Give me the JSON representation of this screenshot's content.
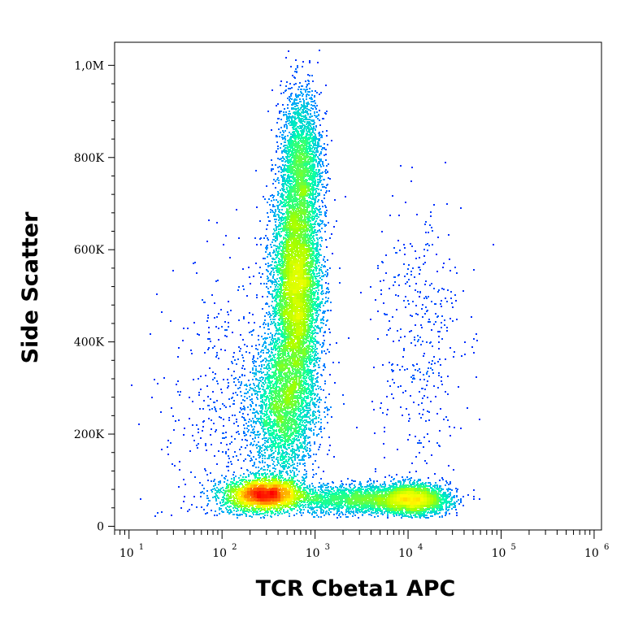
{
  "chart_data": {
    "type": "scatter",
    "subtype": "flow-cytometry-density-dot-plot",
    "title": "",
    "xlabel": "TCR Cbeta1 APC",
    "ylabel": "Side Scatter",
    "x_scale": "log",
    "y_scale": "linear",
    "xlim": [
      7,
      1200000
    ],
    "ylim": [
      -8000,
      1050000
    ],
    "grid": false,
    "legend": "none",
    "x_ticks": [
      {
        "base": "10",
        "exp": "1",
        "value": 10
      },
      {
        "base": "10",
        "exp": "2",
        "value": 100
      },
      {
        "base": "10",
        "exp": "3",
        "value": 1000
      },
      {
        "base": "10",
        "exp": "4",
        "value": 10000
      },
      {
        "base": "10",
        "exp": "5",
        "value": 100000
      },
      {
        "base": "10",
        "exp": "6",
        "value": 1000000
      }
    ],
    "y_ticks": [
      {
        "label": "0",
        "value": 0
      },
      {
        "label": "200K",
        "value": 200000
      },
      {
        "label": "400K",
        "value": 400000
      },
      {
        "label": "600K",
        "value": 600000
      },
      {
        "label": "800K",
        "value": 800000
      },
      {
        "label": "1,0M",
        "value": 1000000
      }
    ],
    "density_colormap": [
      "#0000ff",
      "#00a0ff",
      "#00ffb0",
      "#a0ff00",
      "#ffff00",
      "#ff8000",
      "#ff0000"
    ],
    "populations": [
      {
        "x_center": 620,
        "x_log_sd": 0.13,
        "y_center": 520000,
        "y_sd": 120000,
        "relative_size": 0.34
      },
      {
        "x_center": 700,
        "x_log_sd": 0.11,
        "y_center": 790000,
        "y_sd": 80000,
        "relative_size": 0.09
      },
      {
        "x_center": 450,
        "x_log_sd": 0.18,
        "y_center": 260000,
        "y_sd": 80000,
        "relative_size": 0.16
      },
      {
        "x_center": 280,
        "x_log_sd": 0.22,
        "y_center": 70000,
        "y_sd": 18000,
        "relative_size": 0.22
      },
      {
        "x_center": 2800,
        "x_log_sd": 0.35,
        "y_center": 60000,
        "y_sd": 16000,
        "relative_size": 0.07
      },
      {
        "x_center": 11000,
        "x_log_sd": 0.2,
        "y_center": 60000,
        "y_sd": 17000,
        "relative_size": 0.09
      },
      {
        "x_center": 12000,
        "x_log_sd": 0.25,
        "y_center": 420000,
        "y_sd": 160000,
        "relative_size": 0.015
      },
      {
        "x_center": 120,
        "x_log_sd": 0.35,
        "y_center": 250000,
        "y_sd": 160000,
        "relative_size": 0.02
      }
    ]
  }
}
